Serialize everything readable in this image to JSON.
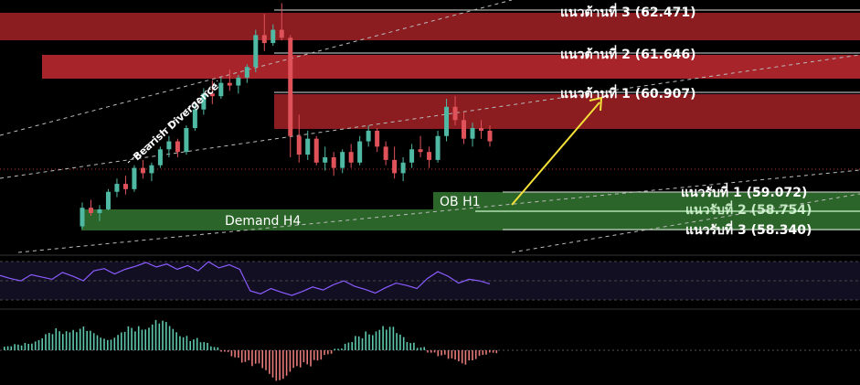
{
  "chart_data": {
    "type": "candlestick",
    "price_range": [
      58.0,
      63.0
    ],
    "resistance_levels": [
      {
        "label": "แนวต้านที่ 3 (62.471)",
        "value": 62.471,
        "color": "#8b1c20"
      },
      {
        "label": "แนวต้านที่ 2 (61.646)",
        "value": 61.646,
        "color": "#a8242b"
      },
      {
        "label": "แนวต้านที่ 1 (60.907)",
        "value": 60.907,
        "color": "#8b1c20"
      }
    ],
    "support_levels": [
      {
        "label": "แนวรับที่ 1 (59.072)",
        "value": 59.072
      },
      {
        "label": "แนวรับที่ 2 (58.754)",
        "value": 58.754
      },
      {
        "label": "แนวรับที่ 3 (58.340)",
        "value": 58.34
      }
    ],
    "zones": [
      {
        "label": "OB H1",
        "color": "#2d6a2b"
      },
      {
        "label": "Demand H4",
        "color": "#2d6a2b"
      }
    ],
    "annotations": {
      "divergence": "Bearish Divergence",
      "arrow_color": "#f5e03a"
    },
    "colors": {
      "up": "#4fb9a4",
      "down": "#e0525a",
      "rsi": "#8a5cff"
    },
    "candles": [
      [
        58.4,
        58.85,
        58.35,
        58.75
      ],
      [
        58.75,
        58.9,
        58.6,
        58.65
      ],
      [
        58.65,
        58.8,
        58.5,
        58.72
      ],
      [
        58.72,
        59.1,
        58.7,
        59.05
      ],
      [
        59.05,
        59.3,
        58.95,
        59.2
      ],
      [
        59.2,
        59.35,
        59.0,
        59.1
      ],
      [
        59.1,
        59.55,
        59.05,
        59.5
      ],
      [
        59.5,
        59.65,
        59.3,
        59.4
      ],
      [
        59.4,
        59.6,
        59.25,
        59.55
      ],
      [
        59.55,
        59.9,
        59.5,
        59.85
      ],
      [
        59.85,
        60.1,
        59.7,
        60.0
      ],
      [
        60.0,
        60.05,
        59.7,
        59.8
      ],
      [
        59.8,
        60.3,
        59.75,
        60.25
      ],
      [
        60.25,
        60.7,
        60.2,
        60.6
      ],
      [
        60.6,
        61.0,
        60.5,
        60.9
      ],
      [
        60.9,
        61.15,
        60.7,
        60.85
      ],
      [
        60.85,
        61.2,
        60.8,
        61.1
      ],
      [
        61.1,
        61.35,
        60.95,
        61.05
      ],
      [
        61.05,
        61.25,
        60.9,
        61.2
      ],
      [
        61.2,
        61.45,
        61.1,
        61.4
      ],
      [
        61.4,
        62.1,
        61.3,
        62.0
      ],
      [
        62.0,
        62.4,
        61.7,
        61.85
      ],
      [
        61.85,
        62.2,
        61.8,
        62.1
      ],
      [
        62.1,
        62.6,
        61.9,
        61.95
      ],
      [
        61.95,
        62.0,
        59.7,
        60.1
      ],
      [
        60.1,
        60.5,
        59.6,
        59.75
      ],
      [
        59.75,
        60.2,
        59.65,
        60.05
      ],
      [
        60.05,
        60.1,
        59.55,
        59.6
      ],
      [
        59.6,
        59.9,
        59.45,
        59.7
      ],
      [
        59.7,
        59.8,
        59.35,
        59.5
      ],
      [
        59.5,
        59.85,
        59.4,
        59.8
      ],
      [
        59.8,
        59.95,
        59.5,
        59.6
      ],
      [
        59.6,
        60.1,
        59.55,
        60.0
      ],
      [
        60.0,
        60.3,
        59.9,
        60.2
      ],
      [
        60.2,
        60.25,
        59.8,
        59.9
      ],
      [
        59.9,
        60.0,
        59.55,
        59.65
      ],
      [
        59.65,
        59.9,
        59.3,
        59.4
      ],
      [
        59.4,
        59.7,
        59.25,
        59.6
      ],
      [
        59.6,
        59.95,
        59.5,
        59.85
      ],
      [
        59.85,
        60.1,
        59.7,
        59.8
      ],
      [
        59.8,
        59.9,
        59.5,
        59.65
      ],
      [
        59.65,
        60.2,
        59.6,
        60.1
      ],
      [
        60.1,
        60.8,
        60.0,
        60.65
      ],
      [
        60.65,
        60.85,
        60.3,
        60.4
      ],
      [
        60.4,
        60.55,
        59.95,
        60.05
      ],
      [
        60.05,
        60.35,
        59.9,
        60.25
      ],
      [
        60.25,
        60.4,
        60.05,
        60.2
      ],
      [
        60.2,
        60.3,
        59.9,
        60.0
      ]
    ],
    "rsi": [
      62,
      58,
      55,
      63,
      60,
      57,
      66,
      61,
      55,
      68,
      71,
      64,
      70,
      74,
      79,
      73,
      77,
      70,
      75,
      68,
      80,
      72,
      76,
      70,
      42,
      38,
      45,
      40,
      36,
      41,
      47,
      43,
      50,
      55,
      48,
      44,
      39,
      46,
      52,
      49,
      45,
      58,
      67,
      61,
      52,
      57,
      55,
      51
    ],
    "macd_hist": [
      0.1,
      0.15,
      0.22,
      0.3,
      0.42,
      0.55,
      0.62,
      0.58,
      0.48,
      0.4,
      0.35,
      0.45,
      0.58,
      0.7,
      0.78,
      0.72,
      0.6,
      0.45,
      0.3,
      0.2,
      0.1,
      -0.05,
      -0.18,
      -0.3,
      -0.45,
      -0.62,
      -0.75,
      -0.7,
      -0.55,
      -0.4,
      -0.25,
      -0.12,
      0.05,
      0.2,
      0.35,
      0.52,
      0.65,
      0.58,
      0.42,
      0.25,
      0.08,
      -0.06,
      -0.15,
      -0.28,
      -0.35,
      -0.25,
      -0.15,
      -0.08
    ]
  }
}
